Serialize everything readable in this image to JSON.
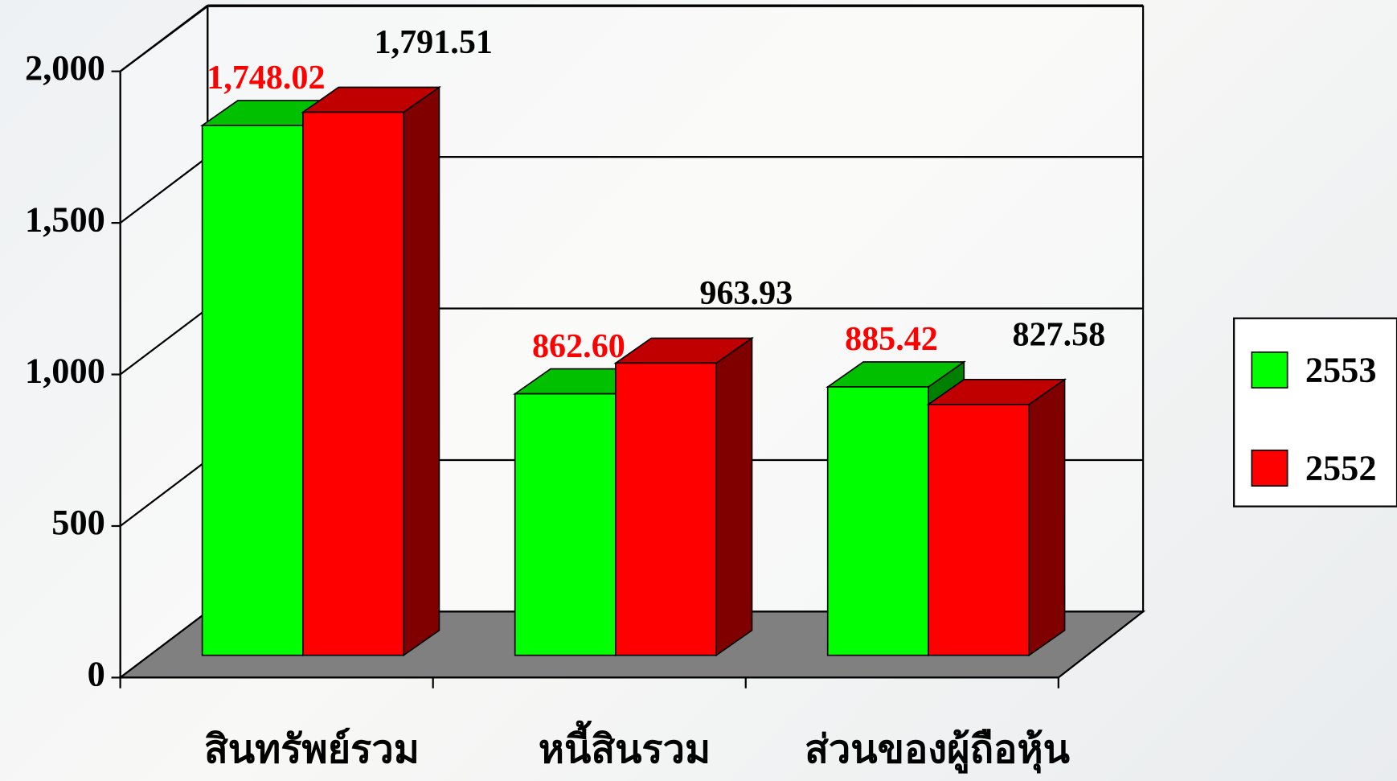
{
  "chart_data": {
    "type": "bar3d",
    "categories": [
      "สินทรัพย์รวม",
      "หนี้สินรวม",
      "ส่วนของผู้ถือหุ้น"
    ],
    "series": [
      {
        "name": "2553",
        "color": "#00ff00",
        "top_color": "#00c000",
        "side_color": "#008000",
        "label_color": "#ff0000",
        "values": [
          1748.02,
          862.6,
          885.42
        ],
        "value_labels": [
          "1,748.02",
          "862.60",
          "885.42"
        ]
      },
      {
        "name": "2552",
        "color": "#ff0000",
        "top_color": "#c00000",
        "side_color": "#800000",
        "label_color": "#000000",
        "values": [
          1791.51,
          963.93,
          827.58
        ],
        "value_labels": [
          "1,791.51",
          "963.93",
          "827.58"
        ]
      }
    ],
    "ylim": [
      0,
      2000
    ],
    "yticks": [
      0,
      500,
      {
        "value": 1000,
        "label": "1,000"
      },
      {
        "value": 1500,
        "label": "1,500"
      },
      {
        "value": 2000,
        "label": "2,000"
      }
    ],
    "grid": true,
    "legend": "right"
  }
}
